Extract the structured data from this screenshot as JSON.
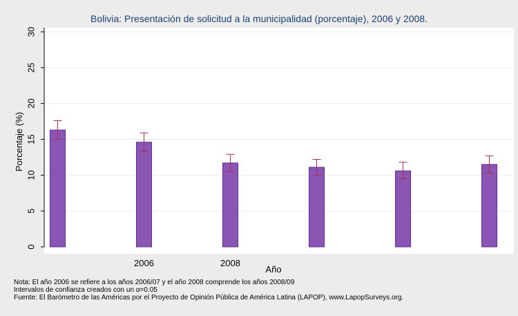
{
  "chart_data": {
    "type": "bar",
    "title": "Bolivia: Presentación de solicitud a la municipalidad (porcentaje), 2006 y 2008.",
    "xlabel": "Año",
    "ylabel": "Porcentaje (%)",
    "ylim": [
      0,
      30
    ],
    "yticks": [
      "0",
      "5",
      "10",
      "15",
      "20",
      "25",
      "30"
    ],
    "categories": [
      "",
      "2006",
      "2008",
      "",
      "",
      ""
    ],
    "values": [
      16.3,
      14.6,
      11.7,
      11.1,
      10.6,
      11.5
    ],
    "ci_low": [
      15.0,
      13.3,
      10.5,
      10.0,
      9.5,
      10.3
    ],
    "ci_high": [
      17.6,
      15.9,
      12.9,
      12.2,
      11.8,
      12.7
    ],
    "grid": true,
    "colors": {
      "bar": "#8b55b5",
      "bar_stroke": "#5e2f86",
      "error": "#a0304a",
      "grid": "#ececec",
      "plot_bg": "#ffffff",
      "page_bg": "#ececec",
      "title": "#1c3f73",
      "text": "#000000"
    }
  },
  "footnotes": {
    "line1": "Nota: El año 2006 se refiere a los años 2006/07 y el año 2008 comprende los años 2008/09",
    "line2": "Intervalos de confianza creados con un α=0.05",
    "line3": "Fuente: El Barómetro de las Américas por el Proyecto de Opinión Pública de América Latina (LAPOP), www.LapopSurveys.org."
  }
}
